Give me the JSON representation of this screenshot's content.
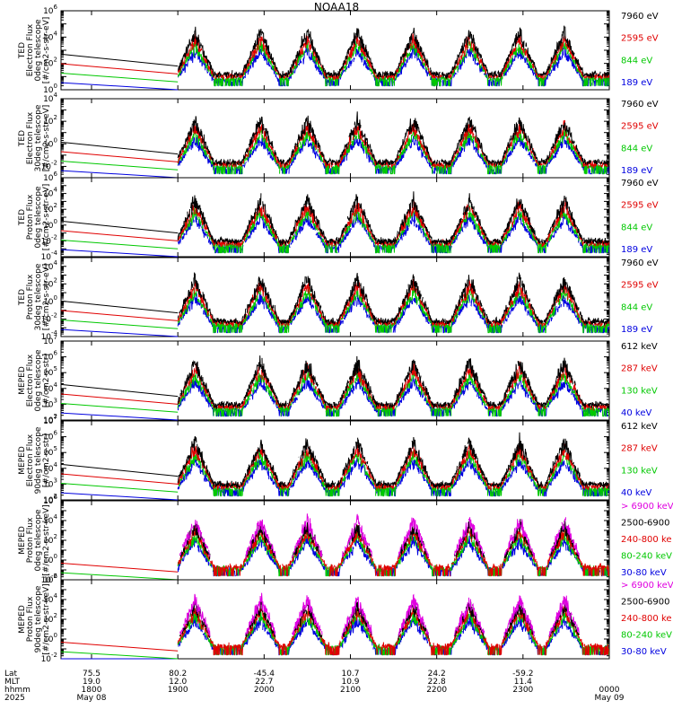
{
  "chart_data": {
    "type": "line",
    "title": "NOAA18",
    "x_ticks": [
      {
        "time": "1800",
        "lat": "75.5",
        "mlt": "19.0",
        "date": "May 08"
      },
      {
        "time": "1900",
        "lat": "80.2",
        "mlt": "12.0",
        "date": ""
      },
      {
        "time": "2000",
        "lat": "-45.4",
        "mlt": "22.7",
        "date": ""
      },
      {
        "time": "2100",
        "lat": "10.7",
        "mlt": "10.9",
        "date": ""
      },
      {
        "time": "2200",
        "lat": "24.2",
        "mlt": "22.8",
        "date": ""
      },
      {
        "time": "2300",
        "lat": "-59.2",
        "mlt": "11.4",
        "date": ""
      },
      {
        "time": "0000",
        "lat": "",
        "mlt": "",
        "date": "May 09"
      }
    ],
    "row_labels": {
      "lat": "Lat",
      "mlt": "MLT",
      "time": "hhmm",
      "year": "2025"
    },
    "panels": [
      {
        "ylabel": [
          "TED",
          "Electron Flux",
          "0deg telescope",
          "[#/cm2-s-str-eV]"
        ],
        "ylog": [
          0,
          6
        ],
        "ticks": [
          0,
          2,
          4,
          6
        ],
        "legend": [
          {
            "text": "7960 eV",
            "color": "#000000"
          },
          {
            "text": "2595 eV",
            "color": "#e00000"
          },
          {
            "text": "844 eV",
            "color": "#00c800"
          },
          {
            "text": "189 eV",
            "color": "#0000e0"
          }
        ]
      },
      {
        "ylabel": [
          "TED",
          "Electron Flux",
          "30deg telescope",
          "[#/cm2-s-str-eV]"
        ],
        "ylog": [
          -3,
          4
        ],
        "ticks": [
          -2,
          0,
          2,
          4
        ],
        "legend": [
          {
            "text": "7960 eV",
            "color": "#000000"
          },
          {
            "text": "2595 eV",
            "color": "#e00000"
          },
          {
            "text": "844 eV",
            "color": "#00c800"
          },
          {
            "text": "189 eV",
            "color": "#0000e0"
          }
        ]
      },
      {
        "ylabel": [
          "TED",
          "Proton Flux",
          "0deg telescope",
          "[#/cm2-s-str-eV]"
        ],
        "ylog": [
          -4,
          6
        ],
        "ticks": [
          -4,
          -2,
          0,
          2,
          4,
          6
        ],
        "legend": [
          {
            "text": "7960 eV",
            "color": "#000000"
          },
          {
            "text": "2595 eV",
            "color": "#e00000"
          },
          {
            "text": "844 eV",
            "color": "#00c800"
          },
          {
            "text": "189 eV",
            "color": "#0000e0"
          }
        ]
      },
      {
        "ylabel": [
          "TED",
          "Proton Flux",
          "30deg telescope",
          "[#/cm2-s-str-eV]"
        ],
        "ylog": [
          -4,
          5
        ],
        "ticks": [
          -4,
          -2,
          0,
          2,
          4
        ],
        "legend": [
          {
            "text": "7960 eV",
            "color": "#000000"
          },
          {
            "text": "2595 eV",
            "color": "#e00000"
          },
          {
            "text": "844 eV",
            "color": "#00c800"
          },
          {
            "text": "189 eV",
            "color": "#0000e0"
          }
        ]
      },
      {
        "ylabel": [
          "MEPED",
          "Electron Flux",
          "0deg telescope",
          "[#/cm2-s-str]"
        ],
        "ylog": [
          2,
          7
        ],
        "ticks": [
          2,
          3,
          4,
          5,
          6,
          7
        ],
        "legend": [
          {
            "text": "612 keV",
            "color": "#000000"
          },
          {
            "text": "287 keV",
            "color": "#e00000"
          },
          {
            "text": "130 keV",
            "color": "#00c800"
          },
          {
            "text": "40 keV",
            "color": "#0000e0"
          }
        ]
      },
      {
        "ylabel": [
          "MEPED",
          "Electron Flux",
          "90deg telescope",
          "[#/cm2-s-str]"
        ],
        "ylog": [
          2,
          7
        ],
        "ticks": [
          2,
          3,
          4,
          5,
          6,
          7
        ],
        "legend": [
          {
            "text": "612 keV",
            "color": "#000000"
          },
          {
            "text": "287 keV",
            "color": "#e00000"
          },
          {
            "text": "130 keV",
            "color": "#00c800"
          },
          {
            "text": "40 keV",
            "color": "#0000e0"
          }
        ]
      },
      {
        "ylabel": [
          "MEPED",
          "Proton Flux",
          "0deg telescope",
          "[#/cm2-s-str-keV]"
        ],
        "ylog": [
          -2,
          6
        ],
        "ticks": [
          -2,
          0,
          2,
          4,
          6
        ],
        "legend": [
          {
            "text": "> 6900 keV",
            "color": "#e000e0"
          },
          {
            "text": "2500-6900",
            "color": "#000000"
          },
          {
            "text": "240-800 ke",
            "color": "#e00000"
          },
          {
            "text": "80-240 keV",
            "color": "#00c800"
          },
          {
            "text": "30-80 keV",
            "color": "#0000e0"
          }
        ]
      },
      {
        "ylabel": [
          "MEPED",
          "Proton Flux",
          "90deg telescope",
          "[#/cm2-s-str-keV]"
        ],
        "ylog": [
          -2,
          6
        ],
        "ticks": [
          -2,
          0,
          2,
          4,
          6
        ],
        "legend": [
          {
            "text": "> 6900 keV",
            "color": "#e000e0"
          },
          {
            "text": "2500-6900",
            "color": "#000000"
          },
          {
            "text": "240-800 ke",
            "color": "#e00000"
          },
          {
            "text": "80-240 keV",
            "color": "#00c800"
          },
          {
            "text": "30-80 keV",
            "color": "#0000e0"
          }
        ]
      }
    ]
  }
}
